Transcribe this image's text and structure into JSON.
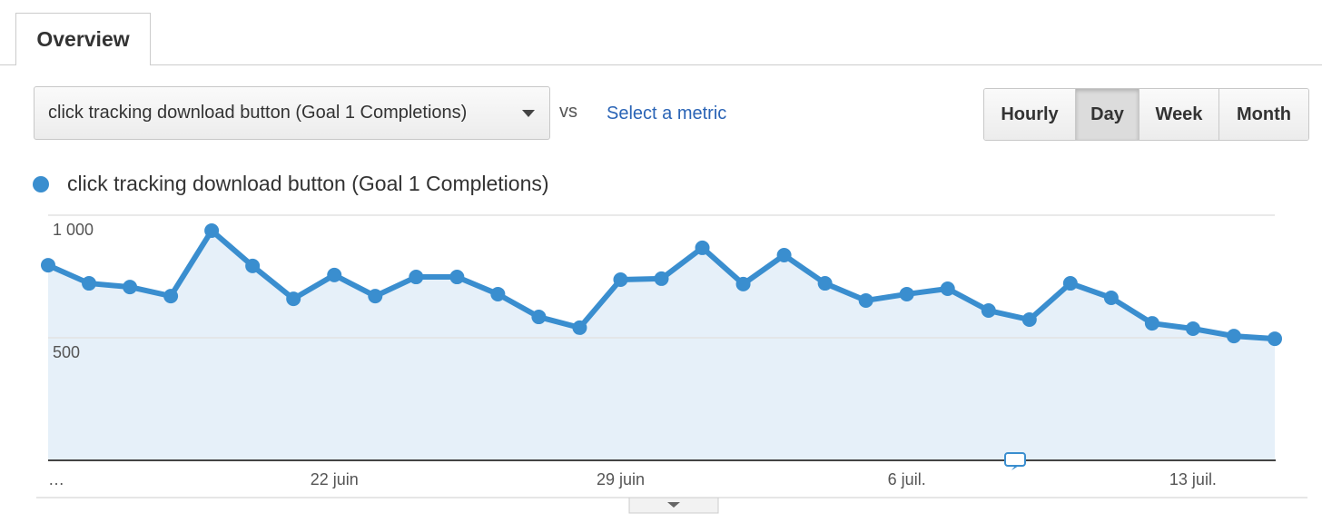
{
  "tabs": [
    "Overview"
  ],
  "metric_select": "click tracking download button (Goal 1 Completions)",
  "vs": "vs",
  "select_metric": "Select a metric",
  "granularity": [
    "Hourly",
    "Day",
    "Week",
    "Month"
  ],
  "chart_data": {
    "type": "line",
    "series": [
      {
        "name": "click tracking download button (Goal 1 Completions)",
        "color": "#3a8ecf",
        "values": [
          796,
          722,
          707,
          670,
          937,
          793,
          659,
          756,
          670,
          748,
          748,
          678,
          585,
          541,
          737,
          741,
          867,
          719,
          837,
          722,
          652,
          678,
          700,
          611,
          574,
          722,
          663,
          559,
          537,
          507,
          496
        ]
      }
    ],
    "categories": [
      "…",
      null,
      null,
      null,
      null,
      null,
      null,
      "22 juin",
      null,
      null,
      null,
      null,
      null,
      null,
      "29 juin",
      null,
      null,
      null,
      null,
      null,
      null,
      "6 juil.",
      null,
      null,
      null,
      null,
      null,
      null,
      "13 juil.",
      null,
      null
    ],
    "ylim": [
      0,
      1000
    ],
    "yticks": [
      {
        "value": 1000,
        "label": "1 000"
      },
      500
    ],
    "grid": true
  }
}
